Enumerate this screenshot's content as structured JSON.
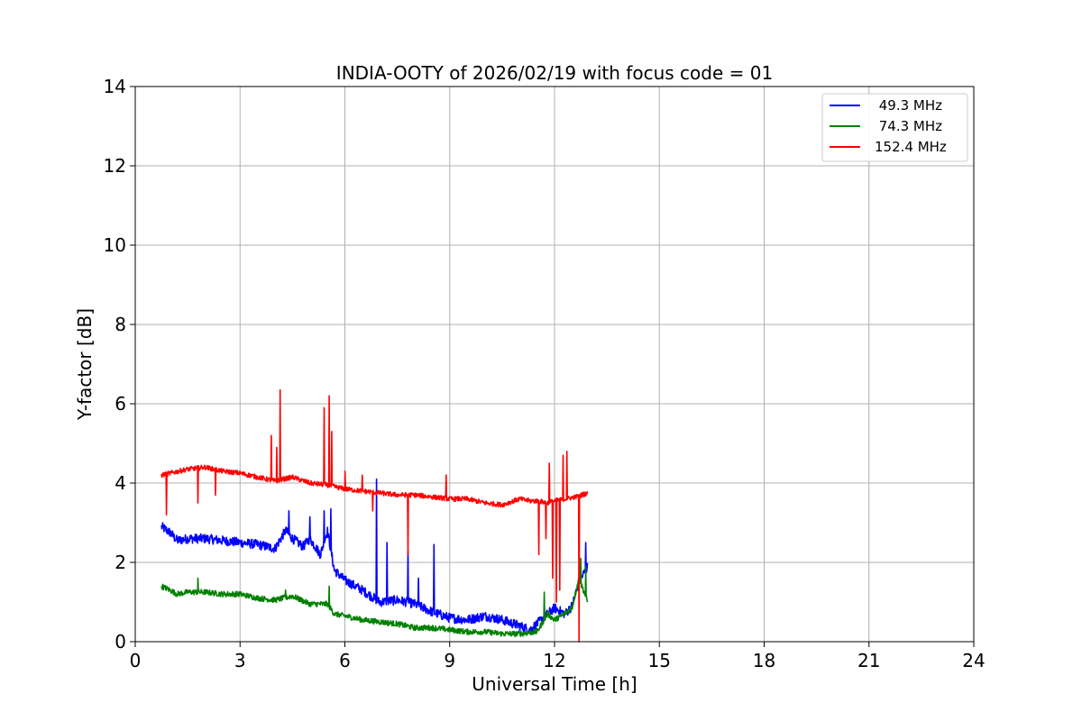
{
  "chart_data": {
    "type": "line",
    "title": "INDIA-OOTY of 2026/02/19 with focus code = 01",
    "xlabel": "Universal Time [h]",
    "ylabel": "Y-factor [dB]",
    "xlim": [
      0,
      24
    ],
    "ylim": [
      0,
      14
    ],
    "xticks": [
      0,
      3,
      6,
      9,
      12,
      15,
      18,
      21,
      24
    ],
    "yticks": [
      0,
      2,
      4,
      6,
      8,
      10,
      12,
      14
    ],
    "grid": true,
    "legend_position": "top-right",
    "series": [
      {
        "name": " 49.3 MHz",
        "color": "#0000ff",
        "noise": 0.12,
        "x": [
          0.75,
          1.0,
          1.2,
          1.5,
          2.0,
          2.5,
          3.0,
          3.5,
          4.0,
          4.3,
          4.5,
          4.8,
          5.0,
          5.3,
          5.5,
          5.7,
          6.0,
          6.5,
          7.0,
          7.5,
          8.0,
          8.5,
          9.0,
          9.5,
          10.0,
          10.5,
          11.0,
          11.3,
          11.5,
          11.8,
          12.0,
          12.3,
          12.5,
          12.7,
          12.95
        ],
        "y": [
          2.9,
          2.75,
          2.55,
          2.6,
          2.6,
          2.55,
          2.5,
          2.45,
          2.35,
          2.8,
          2.6,
          2.4,
          2.6,
          2.2,
          2.8,
          1.8,
          1.55,
          1.3,
          1.0,
          1.05,
          0.95,
          0.75,
          0.6,
          0.55,
          0.65,
          0.55,
          0.4,
          0.3,
          0.45,
          0.7,
          0.85,
          0.7,
          0.9,
          1.5,
          1.9
        ],
        "spikes": [
          [
            4.4,
            3.3
          ],
          [
            5.0,
            3.15
          ],
          [
            5.4,
            3.3
          ],
          [
            5.6,
            3.35
          ],
          [
            6.9,
            4.1
          ],
          [
            7.2,
            2.5
          ],
          [
            7.8,
            2.3
          ],
          [
            8.1,
            1.6
          ],
          [
            8.55,
            2.45
          ],
          [
            12.9,
            2.5
          ]
        ]
      },
      {
        "name": " 74.3 MHz",
        "color": "#008000",
        "noise": 0.07,
        "x": [
          0.75,
          1.0,
          1.2,
          1.5,
          2.0,
          2.5,
          3.0,
          3.5,
          4.0,
          4.5,
          5.0,
          5.5,
          5.7,
          6.0,
          6.5,
          7.0,
          7.5,
          8.0,
          8.5,
          9.0,
          9.5,
          10.0,
          10.5,
          11.0,
          11.5,
          11.8,
          12.0,
          12.2,
          12.5,
          12.7,
          12.95
        ],
        "y": [
          1.4,
          1.3,
          1.2,
          1.25,
          1.25,
          1.2,
          1.2,
          1.1,
          1.05,
          1.15,
          0.95,
          0.95,
          0.7,
          0.65,
          0.55,
          0.5,
          0.45,
          0.35,
          0.35,
          0.3,
          0.25,
          0.25,
          0.2,
          0.2,
          0.25,
          0.7,
          0.55,
          0.65,
          0.85,
          1.6,
          1.0
        ],
        "spikes": [
          [
            1.8,
            1.6
          ],
          [
            4.3,
            1.3
          ],
          [
            5.55,
            1.4
          ],
          [
            11.7,
            1.25
          ],
          [
            12.75,
            2.1
          ],
          [
            12.9,
            1.9
          ]
        ]
      },
      {
        "name": "152.4 MHz",
        "color": "#ff0000",
        "noise": 0.06,
        "x": [
          0.75,
          1.0,
          1.5,
          2.0,
          2.5,
          3.0,
          3.5,
          4.0,
          4.5,
          5.0,
          5.5,
          6.0,
          6.5,
          7.0,
          7.5,
          8.0,
          8.5,
          9.0,
          9.5,
          10.0,
          10.5,
          11.0,
          11.3,
          11.5,
          11.8,
          12.0,
          12.3,
          12.6,
          12.95
        ],
        "y": [
          4.2,
          4.25,
          4.35,
          4.4,
          4.3,
          4.25,
          4.15,
          4.05,
          4.15,
          4.0,
          3.95,
          3.85,
          3.8,
          3.75,
          3.7,
          3.7,
          3.65,
          3.6,
          3.6,
          3.5,
          3.45,
          3.6,
          3.55,
          3.55,
          3.5,
          3.55,
          3.6,
          3.65,
          3.75
        ],
        "spikes": [
          [
            0.9,
            3.2
          ],
          [
            1.8,
            3.5
          ],
          [
            2.3,
            3.7
          ],
          [
            3.9,
            5.2
          ],
          [
            4.05,
            4.9
          ],
          [
            4.15,
            6.35
          ],
          [
            5.4,
            5.9
          ],
          [
            5.55,
            6.2
          ],
          [
            5.62,
            5.3
          ],
          [
            6.0,
            4.3
          ],
          [
            6.5,
            4.2
          ],
          [
            6.8,
            3.3
          ],
          [
            7.8,
            2.2
          ],
          [
            8.9,
            4.2
          ],
          [
            11.55,
            2.2
          ],
          [
            11.75,
            2.6
          ],
          [
            11.85,
            4.5
          ],
          [
            11.95,
            1.6
          ],
          [
            12.05,
            1.0
          ],
          [
            12.15,
            1.3
          ],
          [
            12.25,
            4.7
          ],
          [
            12.35,
            4.8
          ],
          [
            12.7,
            0.0
          ],
          [
            12.95,
            3.0
          ]
        ]
      }
    ]
  }
}
